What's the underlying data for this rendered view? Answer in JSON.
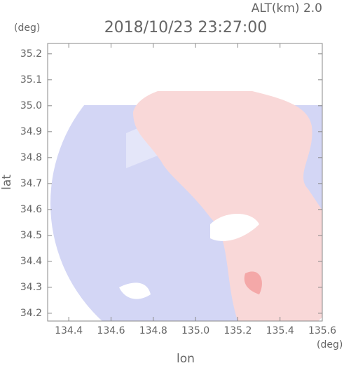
{
  "chart_data": {
    "type": "radar",
    "title": "2018/10/23 23:27:00",
    "subtitle": "ALT(km)  2.0",
    "x_label": "lon",
    "y_label": "lat",
    "x_unit": "(deg)",
    "y_unit": "(deg)",
    "xlim": [
      134.3,
      135.6
    ],
    "ylim": [
      34.17,
      35.24
    ],
    "xticks": [
      {
        "value": 134.4,
        "label": "134.4"
      },
      {
        "value": 134.6,
        "label": "134.6"
      },
      {
        "value": 134.8,
        "label": "134.8"
      },
      {
        "value": 135.0,
        "label": "135.0"
      },
      {
        "value": 135.2,
        "label": "135.2"
      },
      {
        "value": 135.4,
        "label": "135.4"
      },
      {
        "value": 135.6,
        "label": "135.6"
      }
    ],
    "yticks": [
      {
        "value": 34.2,
        "label": "34.2"
      },
      {
        "value": 34.3,
        "label": "34.3"
      },
      {
        "value": 34.4,
        "label": "34.4"
      },
      {
        "value": 34.5,
        "label": "34.5"
      },
      {
        "value": 34.6,
        "label": "34.6"
      },
      {
        "value": 34.7,
        "label": "34.7"
      },
      {
        "value": 34.8,
        "label": "34.8"
      },
      {
        "value": 34.9,
        "label": "34.9"
      },
      {
        "value": 35.0,
        "label": "35.0"
      },
      {
        "value": 35.1,
        "label": "35.1"
      },
      {
        "value": 35.2,
        "label": "35.2"
      }
    ]
  }
}
